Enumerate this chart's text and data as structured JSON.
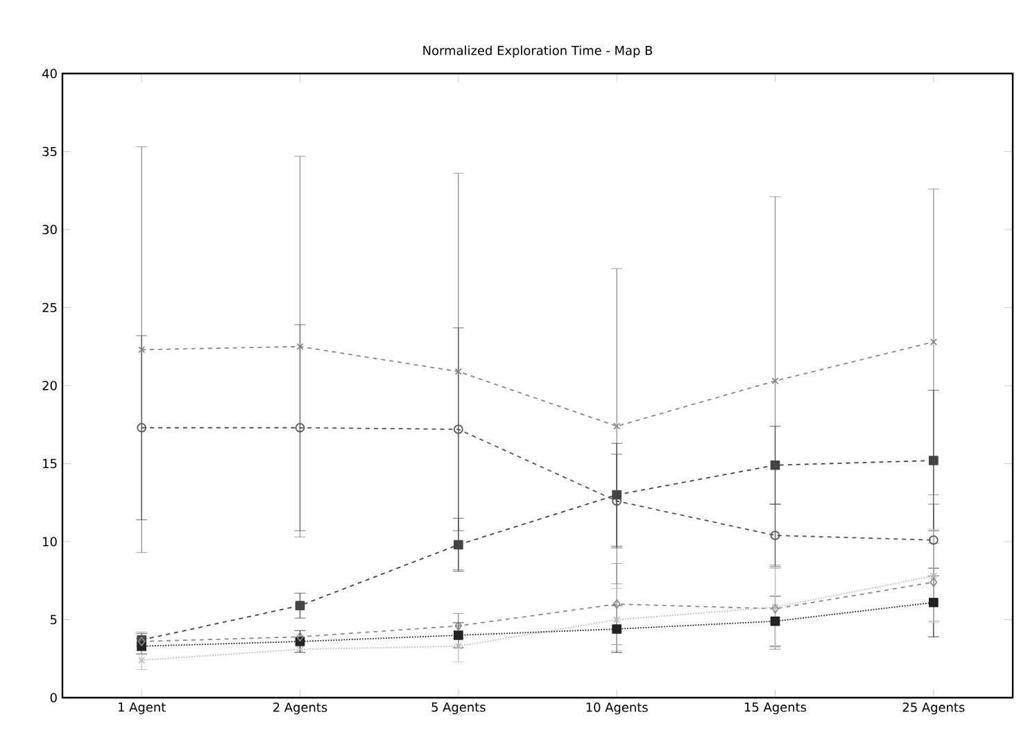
{
  "chart_data": {
    "type": "line",
    "title": "Normalized Exploration Time - Map B",
    "categories": [
      "1 Agent",
      "2 Agents",
      "5 Agents",
      "10 Agents",
      "15 Agents",
      "25 Agents"
    ],
    "ylim": [
      0,
      40
    ],
    "yticks": [
      0,
      5,
      10,
      15,
      20,
      25,
      30,
      35,
      40
    ],
    "grid": false,
    "series": [
      {
        "color": "#888888",
        "marker": "cross",
        "line_style": "dashed",
        "values": [
          22.3,
          22.5,
          20.9,
          17.4,
          20.3,
          22.8
        ],
        "errors": [
          13.0,
          12.2,
          12.7,
          10.1,
          11.8,
          9.8
        ]
      },
      {
        "color": "#555555",
        "marker": "circle",
        "line_style": "dashed",
        "values": [
          17.3,
          17.3,
          17.2,
          12.6,
          10.4,
          10.1
        ],
        "errors": [
          5.9,
          6.6,
          6.5,
          3.0,
          2.0,
          2.3
        ]
      },
      {
        "color": "#444444",
        "marker": "square",
        "line_style": "dashed",
        "values": [
          3.7,
          5.9,
          9.8,
          13.0,
          14.9,
          15.2
        ],
        "errors": [
          0.4,
          0.8,
          1.7,
          3.3,
          2.5,
          4.5
        ]
      },
      {
        "color": "#222222",
        "marker": "square",
        "line_style": "dotted",
        "values": [
          3.3,
          3.6,
          4.0,
          4.4,
          4.9,
          6.1
        ],
        "errors": [
          0.5,
          0.7,
          0.8,
          1.5,
          1.6,
          2.2
        ]
      },
      {
        "color": "#8a8a8a",
        "marker": "diamond",
        "line_style": "dashed",
        "values": [
          3.6,
          3.9,
          4.6,
          6.0,
          5.7,
          7.4
        ],
        "errors": [
          0.6,
          null,
          0.8,
          2.6,
          2.6,
          2.5
        ]
      },
      {
        "color": "#bbbbbb",
        "marker": "cross",
        "line_style": "dotted",
        "values": [
          2.4,
          3.1,
          3.3,
          5.0,
          5.8,
          7.8
        ],
        "errors": [
          0.6,
          null,
          1.0,
          2.0,
          2.6,
          3.0
        ]
      }
    ]
  }
}
